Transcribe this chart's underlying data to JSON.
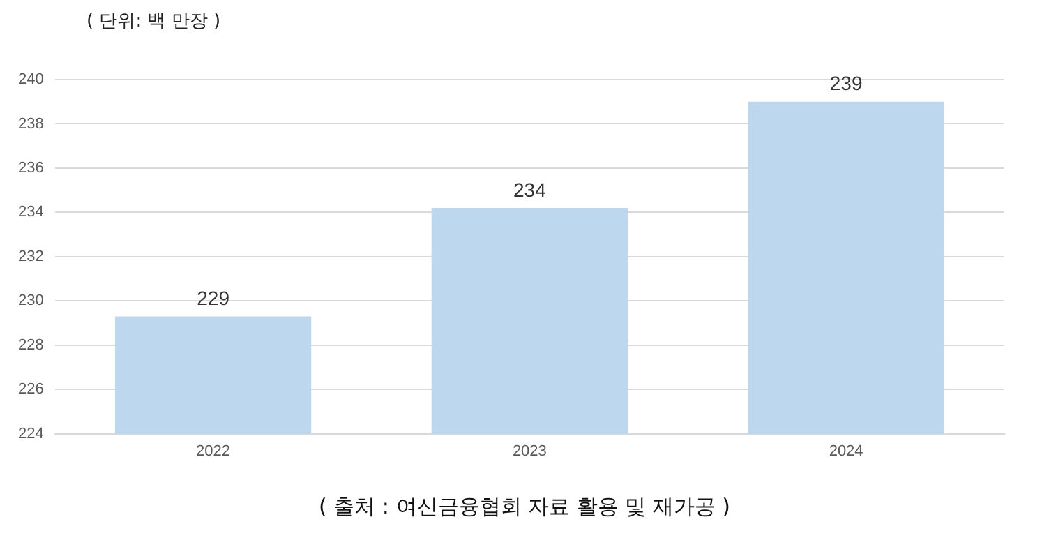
{
  "chart_data": {
    "type": "bar",
    "title": "( 단위: 백 만장 )",
    "annotations": [
      "( 출처 : 여신금융협회 자료 활용 및 재가공 )"
    ],
    "categories": [
      "2022",
      "2023",
      "2024"
    ],
    "values": [
      229.3,
      234.2,
      239.0
    ],
    "value_labels": [
      "229",
      "234",
      "239"
    ],
    "color": "#bdd7ee",
    "ylim": [
      224,
      240
    ],
    "yticks": [
      224,
      226,
      228,
      230,
      232,
      234,
      236,
      238,
      240
    ],
    "grid": "y",
    "legend": false
  }
}
